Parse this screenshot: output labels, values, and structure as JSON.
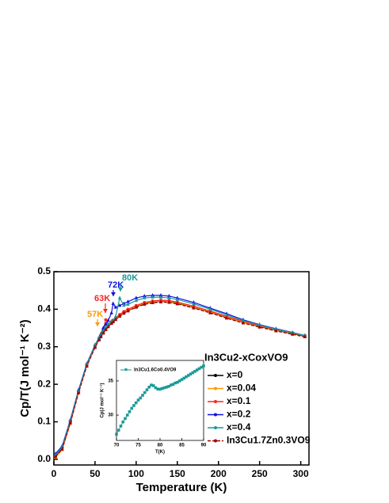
{
  "chart_data": [
    {
      "type": "line",
      "x_label": "Temperature (K)",
      "y_label": "Cp/T(J mol⁻¹ K⁻²)",
      "legend_title": "In3Cu2-xCoxVO9",
      "legend_position": "lower right",
      "x": [
        2,
        10,
        20,
        30,
        40,
        50,
        55,
        57,
        60,
        63,
        66,
        70,
        72,
        75,
        80,
        85,
        90,
        100,
        110,
        120,
        130,
        140,
        150,
        170,
        190,
        210,
        230,
        250,
        270,
        290,
        305
      ],
      "series": [
        {
          "name": "x=0",
          "color": "#000000",
          "marker": "square",
          "values": [
            0.01,
            0.03,
            0.1,
            0.18,
            0.25,
            0.3,
            0.32,
            0.328,
            0.338,
            0.347,
            0.355,
            0.364,
            0.368,
            0.374,
            0.383,
            0.391,
            0.397,
            0.407,
            0.415,
            0.419,
            0.421,
            0.42,
            0.416,
            0.405,
            0.392,
            0.378,
            0.365,
            0.354,
            0.344,
            0.335,
            0.328
          ]
        },
        {
          "name": "x=0.04",
          "color": "#ff9900",
          "marker": "triangle",
          "values": [
            0.005,
            0.025,
            0.095,
            0.178,
            0.25,
            0.302,
            0.322,
            0.335,
            0.34,
            0.348,
            0.356,
            0.365,
            0.369,
            0.375,
            0.384,
            0.392,
            0.398,
            0.408,
            0.416,
            0.42,
            0.422,
            0.421,
            0.417,
            0.406,
            0.393,
            0.379,
            0.366,
            0.355,
            0.345,
            0.336,
            0.329
          ]
        },
        {
          "name": "x=0.1",
          "color": "#ff2020",
          "marker": "circle",
          "values": [
            0.008,
            0.028,
            0.098,
            0.18,
            0.252,
            0.303,
            0.323,
            0.33,
            0.345,
            0.372,
            0.36,
            0.367,
            0.371,
            0.377,
            0.386,
            0.394,
            0.4,
            0.41,
            0.418,
            0.422,
            0.424,
            0.423,
            0.419,
            0.408,
            0.395,
            0.381,
            0.368,
            0.356,
            0.346,
            0.337,
            0.33
          ]
        },
        {
          "name": "x=0.2",
          "color": "#1010e0",
          "marker": "triangle",
          "values": [
            0.015,
            0.035,
            0.105,
            0.185,
            0.255,
            0.305,
            0.325,
            0.333,
            0.35,
            0.36,
            0.37,
            0.39,
            0.415,
            0.405,
            0.41,
            0.415,
            0.42,
            0.43,
            0.435,
            0.437,
            0.437,
            0.435,
            0.43,
            0.418,
            0.403,
            0.388,
            0.372,
            0.359,
            0.348,
            0.338,
            0.33
          ]
        },
        {
          "name": "x=0.4",
          "color": "#1a9a9a",
          "marker": "triangle",
          "values": [
            0.012,
            0.032,
            0.102,
            0.182,
            0.253,
            0.304,
            0.324,
            0.331,
            0.342,
            0.352,
            0.36,
            0.368,
            0.37,
            0.38,
            0.43,
            0.41,
            0.413,
            0.423,
            0.43,
            0.432,
            0.432,
            0.43,
            0.426,
            0.414,
            0.4,
            0.385,
            0.37,
            0.358,
            0.347,
            0.337,
            0.33
          ]
        },
        {
          "name": "In3Cu1.7Zn0.3VO9",
          "color": "#a00000",
          "marker": "triangle",
          "dashed": true,
          "values": [
            0.007,
            0.027,
            0.097,
            0.177,
            0.248,
            0.298,
            0.318,
            0.326,
            0.336,
            0.345,
            0.353,
            0.362,
            0.366,
            0.372,
            0.381,
            0.389,
            0.395,
            0.405,
            0.413,
            0.417,
            0.419,
            0.418,
            0.414,
            0.403,
            0.39,
            0.376,
            0.363,
            0.352,
            0.342,
            0.333,
            0.326
          ]
        }
      ],
      "annotations": [
        {
          "text": "57K",
          "color": "#ff9900"
        },
        {
          "text": "63K",
          "color": "#ff2020"
        },
        {
          "text": "72K",
          "color": "#1010e0"
        },
        {
          "text": "80K",
          "color": "#1a9a9a"
        }
      ],
      "xlim": [
        0,
        310
      ],
      "ylim": [
        -0.015,
        0.5
      ],
      "xticks": [
        0,
        50,
        100,
        150,
        200,
        250,
        300
      ],
      "yticks": [
        {
          "value": 0,
          "label": "0.0"
        },
        0.1,
        0.2,
        0.3,
        0.4,
        0.5
      ],
      "grid": false
    },
    {
      "type": "line",
      "x_label": "T(K)",
      "y_label": "Cp(J mol⁻¹ K⁻¹)",
      "legend_position": "upper left",
      "x": [
        70,
        70.5,
        71,
        71.5,
        72,
        72.5,
        73,
        73.5,
        74,
        74.5,
        75,
        75.5,
        76,
        76.5,
        77,
        77.5,
        78,
        78.5,
        79,
        79.5,
        80,
        80.5,
        81,
        81.5,
        82,
        82.5,
        83,
        83.5,
        84,
        84.5,
        85,
        85.5,
        86,
        86.5,
        87,
        87.5,
        88,
        88.5,
        89,
        89.5,
        90
      ],
      "series": [
        {
          "name": "In3Cu1.6Co0.4VO9",
          "color": "#1a9a9a",
          "marker": "square",
          "values": [
            27.2,
            27.8,
            28.4,
            29.0,
            29.5,
            30.0,
            30.5,
            31.0,
            31.4,
            31.8,
            32.2,
            32.5,
            32.9,
            33.3,
            33.7,
            34.1,
            34.4,
            34.3,
            34.0,
            33.8,
            33.8,
            33.9,
            34.0,
            34.1,
            34.2,
            34.4,
            34.5,
            34.7,
            34.8,
            35.0,
            35.2,
            35.4,
            35.6,
            35.8,
            36.0,
            36.2,
            36.4,
            36.6,
            36.8,
            37.0,
            37.2
          ]
        }
      ],
      "xlim": [
        70,
        90
      ],
      "ylim": [
        26.3,
        38
      ],
      "xticks": [
        70,
        75,
        80,
        85,
        90
      ],
      "yticks": [
        30,
        35
      ],
      "grid": false
    }
  ]
}
